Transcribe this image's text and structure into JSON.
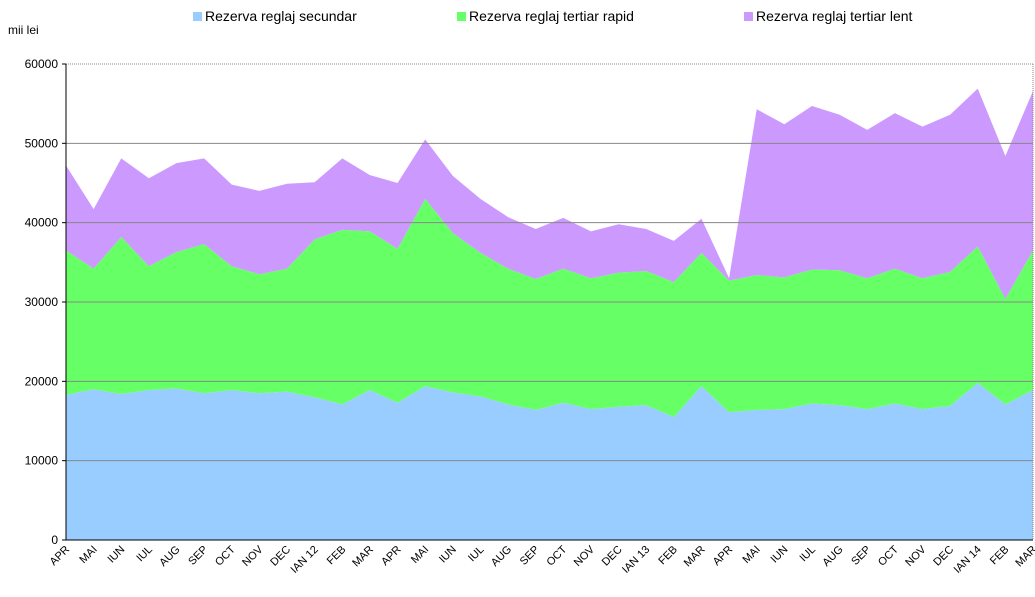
{
  "chart_data": {
    "type": "area",
    "stacked": true,
    "y_label": "mii lei",
    "categories": [
      "APR",
      "MAI",
      "IUN",
      "IUL",
      "AUG",
      "SEP",
      "OCT",
      "NOV",
      "DEC",
      "IAN 12",
      "FEB",
      "MAR",
      "APR",
      "MAI",
      "IUN",
      "IUL",
      "AUG",
      "SEP",
      "OCT",
      "NOV",
      "DEC",
      "IAN 13",
      "FEB",
      "MAR",
      "APR",
      "MAI",
      "IUN",
      "IUL",
      "AUG",
      "SEP",
      "OCT",
      "NOV",
      "DEC",
      "IAN 14",
      "FEB",
      "MAR"
    ],
    "series": [
      {
        "name": "Rezerva reglaj secundar",
        "color": "#99ccff",
        "values": [
          18300,
          19000,
          18400,
          18900,
          19100,
          18500,
          18900,
          18500,
          18700,
          18000,
          17100,
          18900,
          17300,
          19400,
          18600,
          18100,
          17100,
          16400,
          17300,
          16500,
          16800,
          17000,
          15500,
          19400,
          16100,
          16400,
          16500,
          17200,
          17000,
          16500,
          17200,
          16500,
          16900,
          19800,
          17100,
          18900
        ]
      },
      {
        "name": "Rezerva reglaj tertiar rapid",
        "color": "#66ff66",
        "values": [
          18200,
          15200,
          19800,
          15600,
          17200,
          18800,
          15600,
          15000,
          15500,
          19900,
          22000,
          20000,
          19400,
          23600,
          20100,
          18100,
          17100,
          16500,
          16900,
          16500,
          16900,
          16900,
          17000,
          16800,
          16600,
          17000,
          16600,
          16900,
          17000,
          16500,
          17000,
          16500,
          16900,
          17200,
          13300,
          17600
        ]
      },
      {
        "name": "Rezerva reglaj tertiar lent",
        "color": "#cc99ff",
        "values": [
          10700,
          7500,
          9900,
          11100,
          11200,
          10800,
          10300,
          10500,
          10700,
          7200,
          9000,
          7100,
          8300,
          7500,
          7200,
          6800,
          6500,
          6300,
          6400,
          5900,
          6100,
          5300,
          5200,
          4300,
          300,
          20900,
          19300,
          20600,
          19600,
          18700,
          19600,
          19100,
          19800,
          19900,
          18000,
          20100
        ]
      }
    ],
    "ylim": [
      0,
      60000
    ],
    "yticks": [
      0,
      10000,
      20000,
      30000,
      40000,
      50000,
      60000
    ],
    "grid": true,
    "legend": "top"
  }
}
